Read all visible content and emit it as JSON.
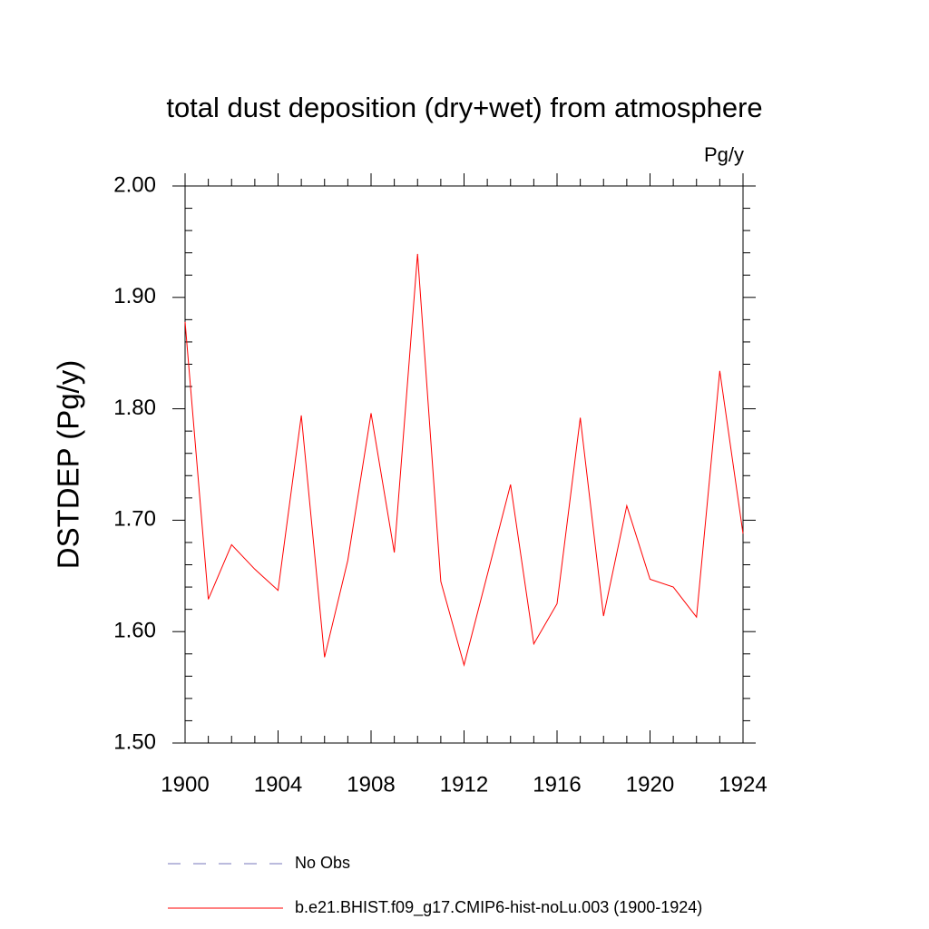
{
  "chart_data": {
    "type": "line",
    "title": "total dust deposition (dry+wet) from atmosphere",
    "units_label": "Pg/y",
    "y_label": "DSTDEP  (Pg/y)",
    "x": [
      1900,
      1901,
      1902,
      1903,
      1904,
      1905,
      1906,
      1907,
      1908,
      1909,
      1910,
      1911,
      1912,
      1913,
      1914,
      1915,
      1916,
      1917,
      1918,
      1919,
      1920,
      1921,
      1922,
      1923,
      1924
    ],
    "series": [
      {
        "name": "No Obs",
        "color": "#7777bb",
        "dashed": true,
        "values": [
          null,
          null,
          null,
          null,
          null,
          null,
          null,
          null,
          null,
          null,
          null,
          null,
          null,
          null,
          null,
          null,
          null,
          null,
          null,
          null,
          null,
          null,
          null,
          null,
          null
        ]
      },
      {
        "name": "b.e21.BHIST.f09_g17.CMIP6-hist-noLu.003 (1900-1924)",
        "color": "#ff0000",
        "dashed": false,
        "values": [
          1.878,
          1.629,
          1.678,
          1.656,
          1.637,
          1.794,
          1.577,
          1.664,
          1.796,
          1.671,
          1.939,
          1.645,
          1.57,
          1.651,
          1.732,
          1.589,
          1.625,
          1.792,
          1.614,
          1.713,
          1.647,
          1.64,
          1.613,
          1.834,
          1.688
        ]
      }
    ],
    "xlim": [
      1900,
      1924
    ],
    "ylim": [
      1.5,
      2.0
    ],
    "xticks": [
      1900,
      1904,
      1908,
      1912,
      1916,
      1920,
      1924
    ],
    "xminorticks": [
      1901,
      1902,
      1903,
      1905,
      1906,
      1907,
      1909,
      1910,
      1911,
      1913,
      1914,
      1915,
      1917,
      1918,
      1919,
      1921,
      1922,
      1923
    ],
    "yticks": [
      {
        "value": 1.5,
        "label": "1.50"
      },
      {
        "value": 1.6,
        "label": "1.60"
      },
      {
        "value": 1.7,
        "label": "1.70"
      },
      {
        "value": 1.8,
        "label": "1.80"
      },
      {
        "value": 1.9,
        "label": "1.90"
      },
      {
        "value": 2.0,
        "label": "2.00"
      }
    ],
    "yminorticks": [
      1.52,
      1.54,
      1.56,
      1.58,
      1.62,
      1.64,
      1.66,
      1.68,
      1.72,
      1.74,
      1.76,
      1.78,
      1.82,
      1.84,
      1.86,
      1.88,
      1.92,
      1.94,
      1.96,
      1.98
    ],
    "grid": false
  }
}
